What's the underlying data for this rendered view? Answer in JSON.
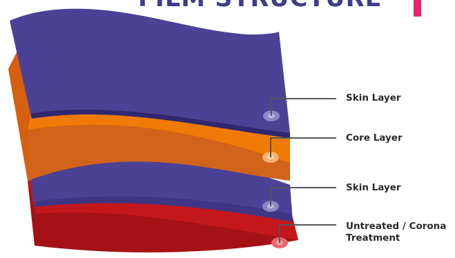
{
  "title": "FILM STRUCTURE",
  "layers": [
    {
      "label": "Skin Layer",
      "color": "#4b4296"
    },
    {
      "label": "Core Layer",
      "color": "#f07a06"
    },
    {
      "label": "Skin Layer",
      "color": "#4b4296"
    },
    {
      "label": "Untreated / Corona\nTreatment",
      "color": "#c4171b"
    }
  ],
  "colors": {
    "title": "#3e3d8c",
    "accent_bar": "#e4246b",
    "leader_line": "#555555"
  }
}
